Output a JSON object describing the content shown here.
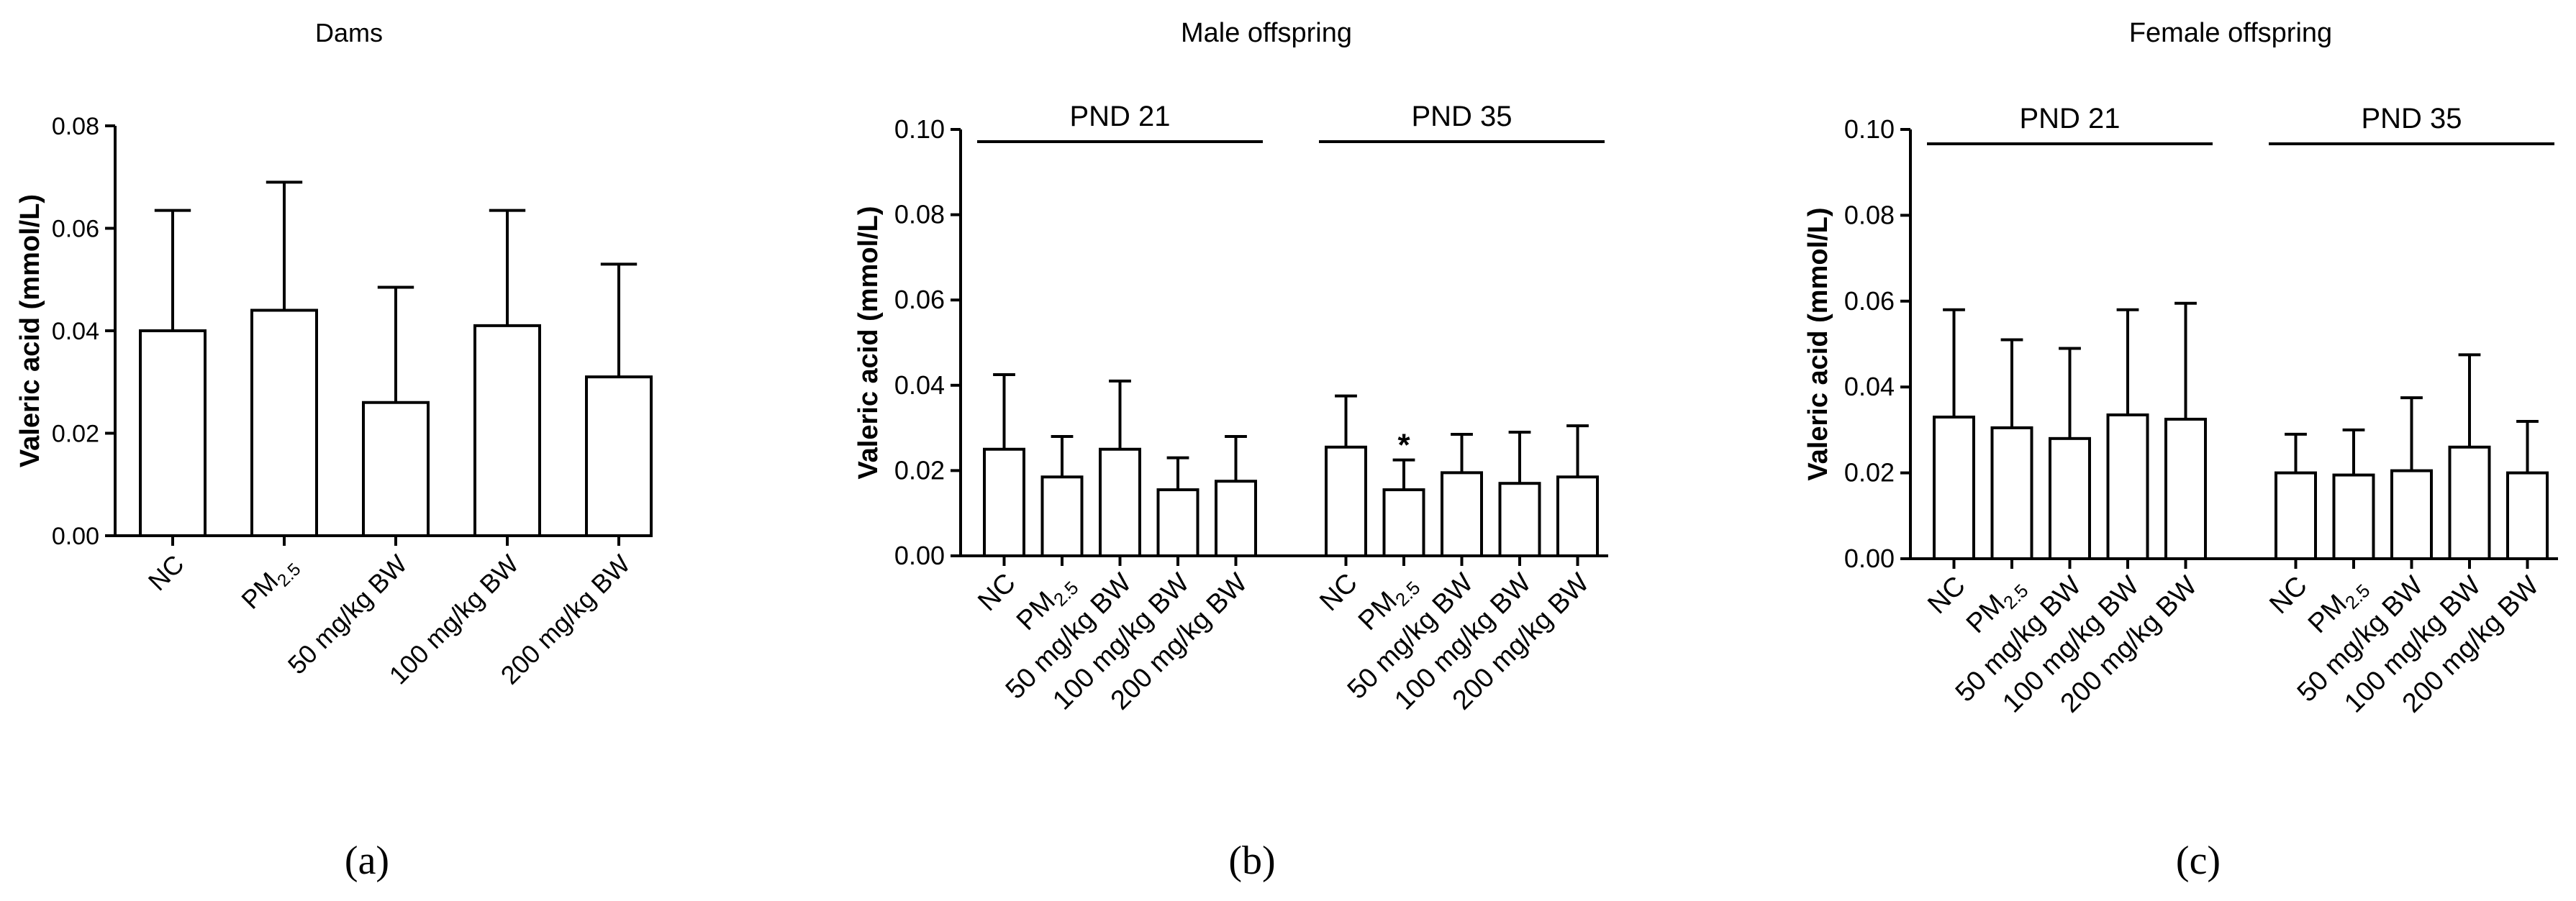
{
  "chart_data": [
    {
      "type": "bar",
      "panel_label": "(a)",
      "title": "Dams",
      "ylabel": "Valeric acid (mmol/L)",
      "ylim": [
        0,
        0.08
      ],
      "yticks": [
        "0.00",
        "0.02",
        "0.04",
        "0.06",
        "0.08"
      ],
      "groups": [
        {
          "label": "",
          "categories": [
            {
              "text": "NC"
            },
            {
              "text": "PM",
              "sub": "2.5"
            },
            {
              "text": "50 mg/kg BW"
            },
            {
              "text": "100 mg/kg BW"
            },
            {
              "text": "200 mg/kg BW"
            }
          ],
          "values": [
            0.04,
            0.044,
            0.026,
            0.041,
            0.031
          ],
          "errors": [
            0.0235,
            0.025,
            0.0225,
            0.0225,
            0.022
          ],
          "annotations": [
            "",
            "",
            "",
            "",
            ""
          ]
        }
      ]
    },
    {
      "type": "bar",
      "panel_label": "(b)",
      "title": "Male offspring",
      "ylabel": "Valeric acid (mmol/L)",
      "ylim": [
        0,
        0.1
      ],
      "yticks": [
        "0.00",
        "0.02",
        "0.04",
        "0.06",
        "0.08",
        "0.10"
      ],
      "groups": [
        {
          "label": "PND 21",
          "categories": [
            {
              "text": "NC"
            },
            {
              "text": "PM",
              "sub": "2.5"
            },
            {
              "text": "50 mg/kg BW"
            },
            {
              "text": "100 mg/kg BW"
            },
            {
              "text": "200 mg/kg BW"
            }
          ],
          "values": [
            0.025,
            0.0185,
            0.025,
            0.0155,
            0.0175
          ],
          "errors": [
            0.0175,
            0.0095,
            0.016,
            0.0075,
            0.0105
          ],
          "annotations": [
            "",
            "",
            "",
            "",
            ""
          ]
        },
        {
          "label": "PND 35",
          "categories": [
            {
              "text": "NC"
            },
            {
              "text": "PM",
              "sub": "2.5"
            },
            {
              "text": "50 mg/kg BW"
            },
            {
              "text": "100 mg/kg BW"
            },
            {
              "text": "200 mg/kg BW"
            }
          ],
          "values": [
            0.0255,
            0.0155,
            0.0195,
            0.017,
            0.0185
          ],
          "errors": [
            0.012,
            0.007,
            0.009,
            0.012,
            0.012
          ],
          "annotations": [
            "",
            "*",
            "",
            "",
            ""
          ]
        }
      ]
    },
    {
      "type": "bar",
      "panel_label": "(c)",
      "title": "Female offspring",
      "ylabel": "Valeric acid (mmol/L)",
      "ylim": [
        0,
        0.1
      ],
      "yticks": [
        "0.00",
        "0.02",
        "0.04",
        "0.06",
        "0.08",
        "0.10"
      ],
      "groups": [
        {
          "label": "PND 21",
          "categories": [
            {
              "text": "NC"
            },
            {
              "text": "PM",
              "sub": "2.5"
            },
            {
              "text": "50 mg/kg BW"
            },
            {
              "text": "100 mg/kg BW"
            },
            {
              "text": "200 mg/kg BW"
            }
          ],
          "values": [
            0.033,
            0.0305,
            0.028,
            0.0335,
            0.0325
          ],
          "errors": [
            0.025,
            0.0205,
            0.021,
            0.0245,
            0.027
          ],
          "annotations": [
            "",
            "",
            "",
            "",
            ""
          ]
        },
        {
          "label": "PND 35",
          "categories": [
            {
              "text": "NC"
            },
            {
              "text": "PM",
              "sub": "2.5"
            },
            {
              "text": "50 mg/kg BW"
            },
            {
              "text": "100 mg/kg BW"
            },
            {
              "text": "200 mg/kg BW"
            }
          ],
          "values": [
            0.02,
            0.0195,
            0.0205,
            0.026,
            0.02
          ],
          "errors": [
            0.009,
            0.0105,
            0.017,
            0.0215,
            0.012
          ],
          "annotations": [
            "",
            "",
            "",
            "",
            ""
          ]
        }
      ]
    }
  ]
}
